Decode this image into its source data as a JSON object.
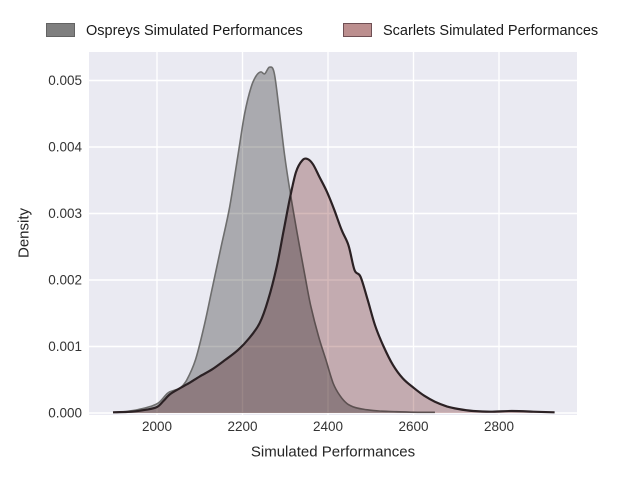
{
  "chart_data": {
    "type": "area",
    "variant": "kde-density",
    "title": "",
    "xlabel": "Simulated Performances",
    "ylabel": "Density",
    "xlim": [
      1841,
      2982
    ],
    "ylim": [
      0,
      0.00543
    ],
    "x_ticks": [
      2000,
      2200,
      2400,
      2600,
      2800
    ],
    "y_ticks": [
      0,
      0.001,
      0.002,
      0.003,
      0.004,
      0.005
    ],
    "y_tick_labels": [
      "0.000",
      "0.001",
      "0.002",
      "0.003",
      "0.004",
      "0.005"
    ],
    "grid": true,
    "legend_position": "top",
    "plot_bg": "#eaeaf2",
    "grid_color": "#ffffff",
    "text_color": "#333333",
    "series": [
      {
        "name": "Ospreys Simulated Performances",
        "fill_color": "#7f7f7f",
        "fill_opacity": 0.55,
        "line_color": "#6e6e6e",
        "line_width": 1.6,
        "legend_edge_color": "#636363",
        "peak": {
          "x": 2263,
          "density": 0.0052
        },
        "points": [
          [
            1897,
            1e-05
          ],
          [
            1925,
            2e-05
          ],
          [
            1955,
            5e-05
          ],
          [
            1985,
            0.0001
          ],
          [
            2005,
            0.00016
          ],
          [
            2025,
            0.0003
          ],
          [
            2040,
            0.00034
          ],
          [
            2055,
            0.00038
          ],
          [
            2070,
            0.0005
          ],
          [
            2090,
            0.0008
          ],
          [
            2110,
            0.0013
          ],
          [
            2130,
            0.0019
          ],
          [
            2150,
            0.0025
          ],
          [
            2170,
            0.0031
          ],
          [
            2190,
            0.0039
          ],
          [
            2205,
            0.0045
          ],
          [
            2220,
            0.0049
          ],
          [
            2232,
            0.00507
          ],
          [
            2243,
            0.00513
          ],
          [
            2252,
            0.0051
          ],
          [
            2263,
            0.0052
          ],
          [
            2274,
            0.00512
          ],
          [
            2285,
            0.0046
          ],
          [
            2298,
            0.0039
          ],
          [
            2312,
            0.0033
          ],
          [
            2328,
            0.0027
          ],
          [
            2345,
            0.0021
          ],
          [
            2360,
            0.0016
          ],
          [
            2378,
            0.00115
          ],
          [
            2395,
            0.0008
          ],
          [
            2412,
            0.00045
          ],
          [
            2428,
            0.00026
          ],
          [
            2445,
            0.00014
          ],
          [
            2465,
            8e-05
          ],
          [
            2490,
            5e-05
          ],
          [
            2520,
            3e-05
          ],
          [
            2560,
            2e-05
          ],
          [
            2610,
            1e-05
          ],
          [
            2650,
            1e-05
          ]
        ]
      },
      {
        "name": "Scarlets Simulated Performances",
        "fill_color": "#bc8f8f",
        "fill_opacity": 0.62,
        "line_color": "#2b2124",
        "line_width": 2.2,
        "legend_edge_color": "#6f4f54",
        "peak": {
          "x": 2352,
          "density": 0.00382
        },
        "points": [
          [
            1897,
            1e-05
          ],
          [
            1940,
            2e-05
          ],
          [
            1975,
            5e-05
          ],
          [
            2000,
            9e-05
          ],
          [
            2015,
            0.00018
          ],
          [
            2030,
            0.00028
          ],
          [
            2050,
            0.00036
          ],
          [
            2075,
            0.00045
          ],
          [
            2100,
            0.00055
          ],
          [
            2130,
            0.00066
          ],
          [
            2160,
            0.0008
          ],
          [
            2190,
            0.00095
          ],
          [
            2215,
            0.00112
          ],
          [
            2240,
            0.00135
          ],
          [
            2260,
            0.0017
          ],
          [
            2280,
            0.0022
          ],
          [
            2295,
            0.0027
          ],
          [
            2310,
            0.0032
          ],
          [
            2325,
            0.00362
          ],
          [
            2340,
            0.0038
          ],
          [
            2352,
            0.00382
          ],
          [
            2365,
            0.00374
          ],
          [
            2380,
            0.00355
          ],
          [
            2398,
            0.00332
          ],
          [
            2415,
            0.00305
          ],
          [
            2432,
            0.00275
          ],
          [
            2448,
            0.00252
          ],
          [
            2462,
            0.00215
          ],
          [
            2476,
            0.00205
          ],
          [
            2492,
            0.00172
          ],
          [
            2510,
            0.00132
          ],
          [
            2530,
            0.001
          ],
          [
            2552,
            0.00072
          ],
          [
            2575,
            0.00052
          ],
          [
            2600,
            0.00038
          ],
          [
            2625,
            0.00026
          ],
          [
            2650,
            0.00017
          ],
          [
            2678,
            0.0001
          ],
          [
            2705,
            6e-05
          ],
          [
            2740,
            3e-05
          ],
          [
            2780,
            2e-05
          ],
          [
            2830,
            3e-05
          ],
          [
            2880,
            2e-05
          ],
          [
            2930,
            1e-05
          ]
        ]
      }
    ]
  }
}
